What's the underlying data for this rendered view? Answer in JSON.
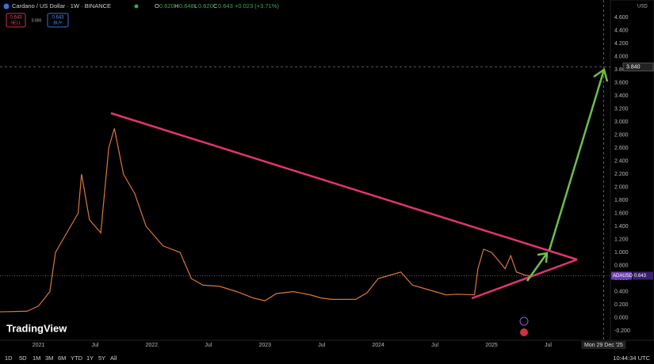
{
  "header": {
    "symbol": "Cardano / US Dollar · 1W · BINANCE",
    "ohlc": [
      {
        "key": "O",
        "value": "0.620"
      },
      {
        "key": "H",
        "value": "0.648"
      },
      {
        "key": "L",
        "value": "0.620"
      },
      {
        "key": "C",
        "value": "0.643"
      }
    ],
    "change": "+0.023 (+3.71%)",
    "sell": {
      "price": "0.643",
      "label": "SELL"
    },
    "spread": "0.000",
    "buy": {
      "price": "0.643",
      "label": "BUY"
    }
  },
  "footer": {
    "logo": "TradingView",
    "ranges": [
      "1D",
      "5D",
      "1M",
      "3M",
      "6M",
      "YTD",
      "1Y",
      "5Y",
      "All"
    ],
    "clock": "10:44:34 UTC"
  },
  "chart_data": {
    "type": "line",
    "currency": "USD",
    "series": [
      {
        "name": "ADAUSD",
        "color": "#d9773a",
        "x": [
          2020.66,
          2020.9,
          2021.0,
          2021.1,
          2021.15,
          2021.25,
          2021.35,
          2021.38,
          2021.45,
          2021.55,
          2021.62,
          2021.67,
          2021.75,
          2021.85,
          2021.95,
          2022.0,
          2022.1,
          2022.25,
          2022.35,
          2022.45,
          2022.6,
          2022.75,
          2022.9,
          2023.0,
          2023.1,
          2023.25,
          2023.4,
          2023.5,
          2023.6,
          2023.8,
          2023.9,
          2024.0,
          2024.1,
          2024.2,
          2024.3,
          2024.5,
          2024.6,
          2024.7,
          2024.85,
          2024.88,
          2024.93,
          2025.0,
          2025.05,
          2025.12,
          2025.17,
          2025.22,
          2025.3,
          2025.35
        ],
        "values": [
          0.09,
          0.1,
          0.18,
          0.4,
          1.0,
          1.3,
          1.6,
          2.2,
          1.5,
          1.3,
          2.6,
          2.9,
          2.2,
          1.9,
          1.4,
          1.3,
          1.1,
          1.0,
          0.6,
          0.5,
          0.48,
          0.4,
          0.3,
          0.26,
          0.37,
          0.4,
          0.35,
          0.3,
          0.28,
          0.28,
          0.38,
          0.6,
          0.65,
          0.7,
          0.5,
          0.4,
          0.35,
          0.36,
          0.35,
          0.75,
          1.05,
          1.0,
          0.9,
          0.75,
          0.95,
          0.7,
          0.65,
          0.643
        ]
      }
    ],
    "last_price": {
      "value": 0.643,
      "label": "0.643"
    },
    "crosshair": {
      "x": {
        "value": 2025.99,
        "label": "Mon 29 Dec '25"
      },
      "y": {
        "value": 3.84,
        "label": "3.840"
      }
    },
    "xlim": [
      2020.66,
      2026.05
    ],
    "xticks": [
      {
        "value": 2021,
        "label": "2021"
      },
      {
        "value": 2021.5,
        "label": "Jul"
      },
      {
        "value": 2022,
        "label": "2022"
      },
      {
        "value": 2022.5,
        "label": "Jul"
      },
      {
        "value": 2023,
        "label": "2023"
      },
      {
        "value": 2023.5,
        "label": "Jul"
      },
      {
        "value": 2024,
        "label": "2024"
      },
      {
        "value": 2024.5,
        "label": "Jul"
      },
      {
        "value": 2025,
        "label": "2025"
      },
      {
        "value": 2025.5,
        "label": "Jul"
      }
    ],
    "ylim": [
      -0.3,
      4.8
    ],
    "yticks": [
      {
        "value": -0.2,
        "label": "-0.200"
      },
      {
        "value": 0,
        "label": "0.000"
      },
      {
        "value": 0.2,
        "label": "0.200"
      },
      {
        "value": 0.4,
        "label": "0.400"
      },
      {
        "value": 0.6,
        "label": "0.600"
      },
      {
        "value": 0.8,
        "label": "0.800"
      },
      {
        "value": 1,
        "label": "1.000"
      },
      {
        "value": 1.2,
        "label": "1.200"
      },
      {
        "value": 1.4,
        "label": "1.400"
      },
      {
        "value": 1.6,
        "label": "1.600"
      },
      {
        "value": 1.8,
        "label": "1.800"
      },
      {
        "value": 2,
        "label": "2.000"
      },
      {
        "value": 2.2,
        "label": "2.200"
      },
      {
        "value": 2.4,
        "label": "2.400"
      },
      {
        "value": 2.6,
        "label": "2.600"
      },
      {
        "value": 2.8,
        "label": "2.800"
      },
      {
        "value": 3,
        "label": "3.000"
      },
      {
        "value": 3.2,
        "label": "3.200"
      },
      {
        "value": 3.4,
        "label": "3.400"
      },
      {
        "value": 3.6,
        "label": "3.600"
      },
      {
        "value": 3.8,
        "label": "3.800"
      },
      {
        "value": 4,
        "label": "4.000"
      },
      {
        "value": 4.2,
        "label": "4.200"
      },
      {
        "value": 4.4,
        "label": "4.400"
      },
      {
        "value": 4.6,
        "label": "4.600"
      }
    ],
    "grid": false
  }
}
